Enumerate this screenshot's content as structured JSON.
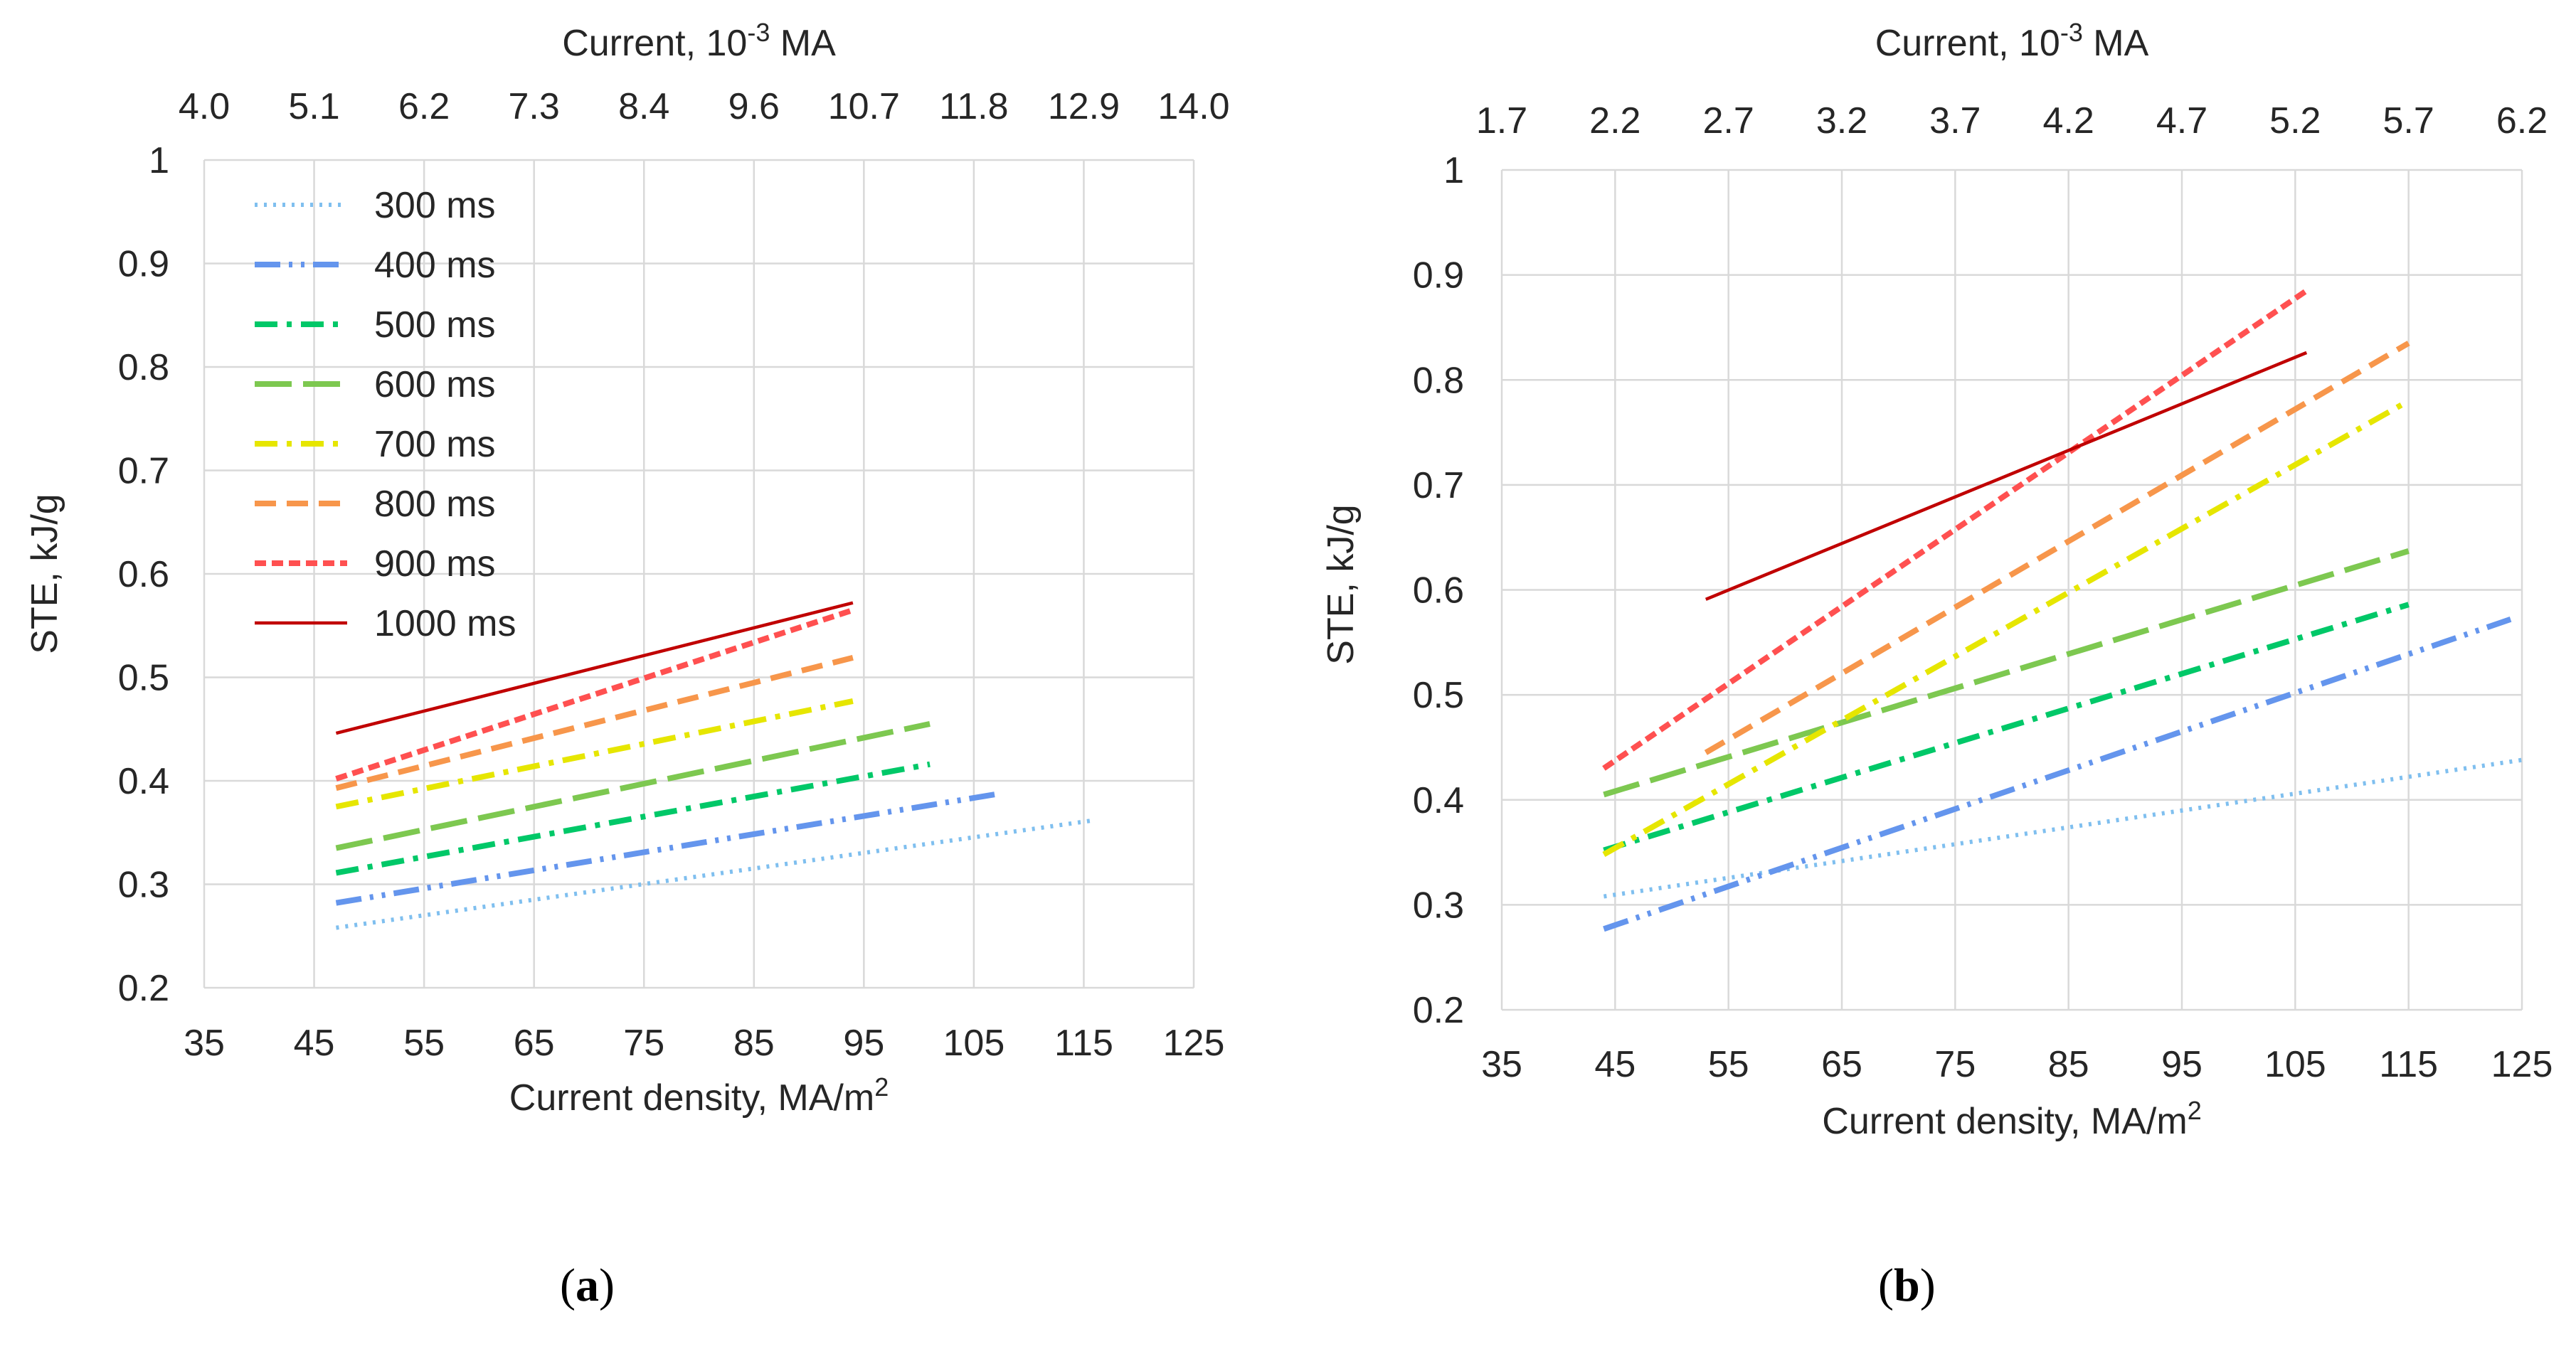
{
  "figure": {
    "panels": [
      {
        "paren_open": "(",
        "letter": "a",
        "paren_close": ")"
      },
      {
        "paren_open": "(",
        "letter": "b",
        "paren_close": ")"
      }
    ]
  },
  "chart_data": [
    {
      "type": "line",
      "panel": "a",
      "title": "",
      "xlabel": "Current density, MA/m",
      "xlabel_sup": "2",
      "ylabel": "STE, kJ/g",
      "top_axis_label": "Current, 10",
      "top_axis_sup": "-3",
      "top_axis_unit": " MA",
      "xlim": [
        35,
        125
      ],
      "ylim": [
        0.2,
        1
      ],
      "grid": true,
      "legend": "top-left",
      "x_ticks": [
        "35",
        "45",
        "55",
        "65",
        "75",
        "85",
        "95",
        "105",
        "115",
        "125"
      ],
      "y_ticks": [
        "0.2",
        "0.3",
        "0.4",
        "0.5",
        "0.6",
        "0.7",
        "0.8",
        "0.9",
        "1"
      ],
      "top_ticks": [
        "4.0",
        "5.1",
        "6.2",
        "7.3",
        "8.4",
        "9.6",
        "10.7",
        "11.8",
        "12.9",
        "14.0"
      ],
      "series": [
        {
          "name": "300 ms",
          "color": "#7FBFEF",
          "dash": "dot",
          "x": [
            47,
            116
          ],
          "values": [
            0.258,
            0.362
          ]
        },
        {
          "name": "400 ms",
          "color": "#6495ED",
          "dash": "dashdotdot",
          "x": [
            47,
            107
          ],
          "values": [
            0.282,
            0.387
          ]
        },
        {
          "name": "500 ms",
          "color": "#00C868",
          "dash": "dashdot",
          "x": [
            47,
            101
          ],
          "values": [
            0.311,
            0.416
          ]
        },
        {
          "name": "600 ms",
          "color": "#7DC850",
          "dash": "longdash",
          "x": [
            47,
            101
          ],
          "values": [
            0.335,
            0.455
          ]
        },
        {
          "name": "700 ms",
          "color": "#E6E600",
          "dash": "dashdot",
          "x": [
            47,
            94
          ],
          "values": [
            0.375,
            0.477
          ]
        },
        {
          "name": "800 ms",
          "color": "#F7964B",
          "dash": "dash",
          "x": [
            47,
            94
          ],
          "values": [
            0.393,
            0.519
          ]
        },
        {
          "name": "900 ms",
          "color": "#FF5050",
          "dash": "shortdash",
          "x": [
            47,
            94
          ],
          "values": [
            0.402,
            0.565
          ]
        },
        {
          "name": "1000 ms",
          "color": "#C00000",
          "dash": "solid",
          "x": [
            47,
            94
          ],
          "values": [
            0.446,
            0.572
          ]
        }
      ]
    },
    {
      "type": "line",
      "panel": "b",
      "title": "",
      "xlabel": "Current density, MA/m",
      "xlabel_sup": "2",
      "ylabel": "STE, kJ/g",
      "top_axis_label": "Current, 10",
      "top_axis_sup": "-3",
      "top_axis_unit": " MA",
      "xlim": [
        35,
        125
      ],
      "ylim": [
        0.2,
        1
      ],
      "grid": true,
      "legend": "none",
      "x_ticks": [
        "35",
        "45",
        "55",
        "65",
        "75",
        "85",
        "95",
        "105",
        "115",
        "125"
      ],
      "y_ticks": [
        "0.2",
        "0.3",
        "0.4",
        "0.5",
        "0.6",
        "0.7",
        "0.8",
        "0.9",
        "1"
      ],
      "top_ticks": [
        "1.7",
        "2.2",
        "2.7",
        "3.2",
        "3.7",
        "4.2",
        "4.7",
        "5.2",
        "5.7",
        "6.2"
      ],
      "series": [
        {
          "name": "300 ms",
          "color": "#7FBFEF",
          "dash": "dot",
          "x": [
            44,
            125
          ],
          "values": [
            0.308,
            0.438
          ]
        },
        {
          "name": "400 ms",
          "color": "#6495ED",
          "dash": "dashdotdot",
          "x": [
            44,
            124
          ],
          "values": [
            0.277,
            0.572
          ]
        },
        {
          "name": "500 ms",
          "color": "#00C868",
          "dash": "dashdot",
          "x": [
            44,
            115
          ],
          "values": [
            0.352,
            0.586
          ]
        },
        {
          "name": "600 ms",
          "color": "#7DC850",
          "dash": "longdash",
          "x": [
            44,
            115
          ],
          "values": [
            0.405,
            0.637
          ]
        },
        {
          "name": "700 ms",
          "color": "#E6E600",
          "dash": "dashdot",
          "x": [
            44,
            115
          ],
          "values": [
            0.348,
            0.78
          ]
        },
        {
          "name": "800 ms",
          "color": "#F7964B",
          "dash": "dash",
          "x": [
            53,
            115
          ],
          "values": [
            0.445,
            0.835
          ]
        },
        {
          "name": "900 ms",
          "color": "#FF5050",
          "dash": "shortdash",
          "x": [
            44,
            106
          ],
          "values": [
            0.43,
            0.885
          ]
        },
        {
          "name": "1000 ms",
          "color": "#C00000",
          "dash": "solid",
          "x": [
            53,
            106
          ],
          "values": [
            0.591,
            0.826
          ]
        }
      ]
    }
  ]
}
